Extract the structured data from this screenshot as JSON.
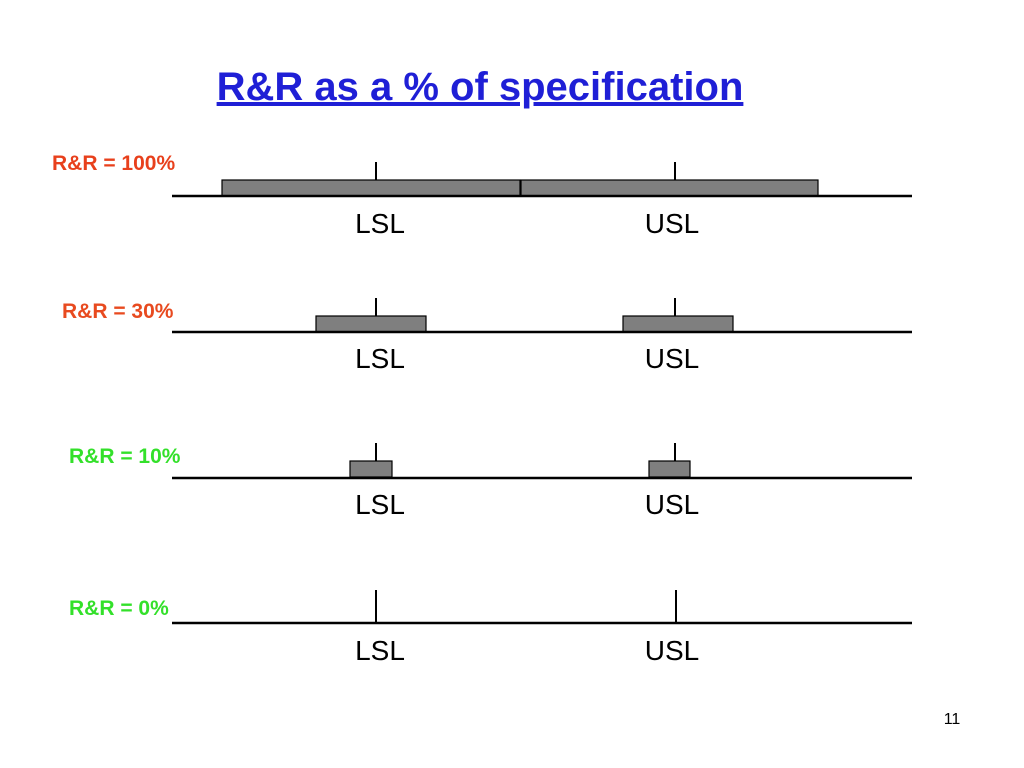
{
  "title": "R&R as a % of specification",
  "rows": [
    {
      "label": "R&R = 100%",
      "lsl": "LSL",
      "usl": "USL"
    },
    {
      "label": "R&R = 30%",
      "lsl": "LSL",
      "usl": "USL"
    },
    {
      "label": "R&R = 10%",
      "lsl": "LSL",
      "usl": "USL"
    },
    {
      "label": "R&R = 0%",
      "lsl": "LSL",
      "usl": "USL"
    }
  ],
  "page_number": "11"
}
